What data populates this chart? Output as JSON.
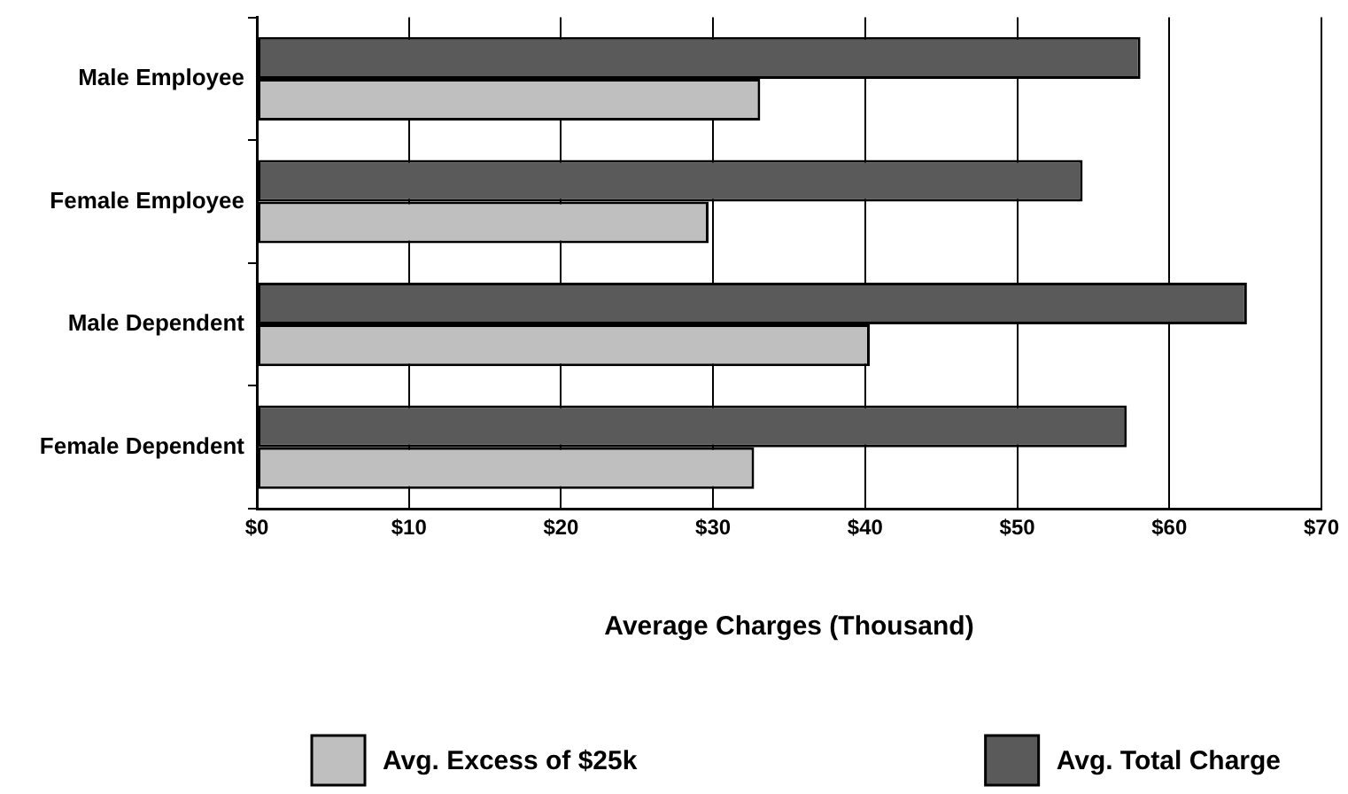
{
  "chart_data": {
    "type": "bar",
    "orientation": "horizontal",
    "categories": [
      "Male Employee",
      "Female Employee",
      "Male Dependent",
      "Female Dependent"
    ],
    "series": [
      {
        "name": "Avg. Excess of $25k",
        "color": "#bfbfbf",
        "values": [
          33.1,
          29.7,
          40.3,
          32.7
        ]
      },
      {
        "name": "Avg. Total Charge",
        "color": "#5a5a5a",
        "values": [
          58.1,
          54.3,
          65.1,
          57.2
        ]
      }
    ],
    "xlabel": "Average Charges (Thousand)",
    "xlim": [
      0,
      70
    ],
    "xticks": [
      {
        "value": 0,
        "label": "$0"
      },
      {
        "value": 10,
        "label": "$10"
      },
      {
        "value": 20,
        "label": "$20"
      },
      {
        "value": 30,
        "label": "$30"
      },
      {
        "value": 40,
        "label": "$40"
      },
      {
        "value": 50,
        "label": "$50"
      },
      {
        "value": 60,
        "label": "$60"
      },
      {
        "value": 70,
        "label": "$70"
      }
    ],
    "grid": "x",
    "legend": "bottom"
  }
}
